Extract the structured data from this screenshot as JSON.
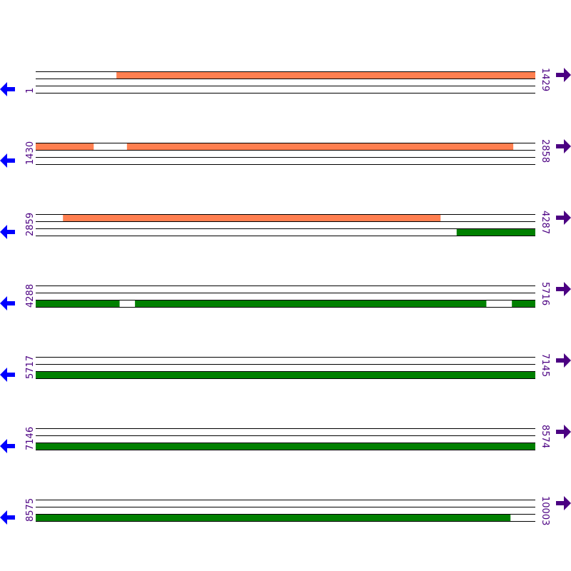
{
  "colors": {
    "forward_feature": "#ff7f50",
    "reverse_feature": "#008000",
    "left_arrow": "#0000ff",
    "right_arrow": "#4b0082",
    "label": "#4b0082"
  },
  "bp_per_row": 1429,
  "rows": [
    {
      "start": 1,
      "end": 1429,
      "start_label": "1",
      "end_label": "1429",
      "top": [
        [
          232,
          1429
        ]
      ],
      "bottom": []
    },
    {
      "start": 1430,
      "end": 2858,
      "start_label": "1430",
      "end_label": "2858",
      "top": [
        [
          1430,
          1595
        ],
        [
          1691,
          2795
        ]
      ],
      "bottom": []
    },
    {
      "start": 2859,
      "end": 4287,
      "start_label": "2859",
      "end_label": "4287",
      "top": [
        [
          2937,
          4016
        ]
      ],
      "bottom": [
        [
          4063,
          4287
        ]
      ]
    },
    {
      "start": 4288,
      "end": 5716,
      "start_label": "4288",
      "end_label": "5716",
      "top": [],
      "bottom": [
        [
          4288,
          4527
        ],
        [
          4572,
          5576
        ],
        [
          5650,
          5716
        ]
      ]
    },
    {
      "start": 5717,
      "end": 7145,
      "start_label": "5717",
      "end_label": "7145",
      "top": [],
      "bottom": [
        [
          5717,
          7145
        ]
      ]
    },
    {
      "start": 7146,
      "end": 8574,
      "start_label": "7146",
      "end_label": "8574",
      "top": [],
      "bottom": [
        [
          7146,
          8574
        ]
      ]
    },
    {
      "start": 8575,
      "end": 10003,
      "start_label": "8575",
      "end_label": "10003",
      "top": [],
      "bottom": [
        [
          8575,
          9932
        ]
      ]
    }
  ]
}
